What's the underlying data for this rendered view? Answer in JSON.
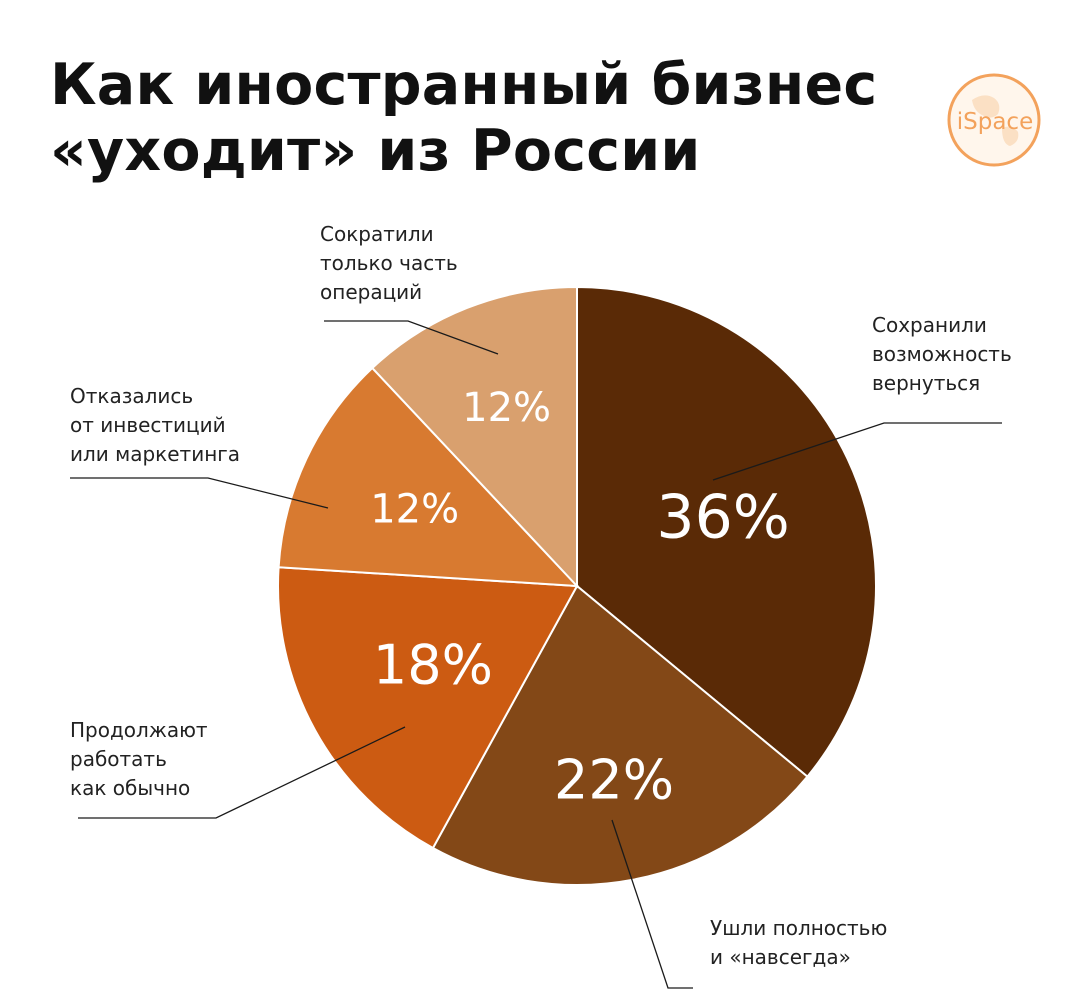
{
  "title": {
    "line1": "Как иностранный бизнес",
    "line2": "«уходит» из России"
  },
  "logo": {
    "text": "iSpace",
    "color": "#f3a25c"
  },
  "chart_data": {
    "type": "pie",
    "title": "Как иностранный бизнес «уходит» из России",
    "unit": "%",
    "start": "12 o'clock, clockwise",
    "slices": [
      {
        "label_lines": [
          "Сохранили",
          "возможность",
          "вернуться"
        ],
        "value": 36,
        "label_text": "36%",
        "color": "#5a2a06"
      },
      {
        "label_lines": [
          "Ушли полностью",
          "и «навсегда»"
        ],
        "value": 22,
        "label_text": "22%",
        "color": "#834817"
      },
      {
        "label_lines": [
          "Продолжают",
          "работать",
          "как обычно"
        ],
        "value": 18,
        "label_text": "18%",
        "color": "#cc5b12"
      },
      {
        "label_lines": [
          "Отказались",
          "от инвестиций",
          "или маркетинга"
        ],
        "value": 12,
        "label_text": "12%",
        "color": "#d87a30"
      },
      {
        "label_lines": [
          "Сократили",
          "только часть",
          "операций"
        ],
        "value": 12,
        "label_text": "12%",
        "color": "#d9a06e"
      }
    ]
  }
}
